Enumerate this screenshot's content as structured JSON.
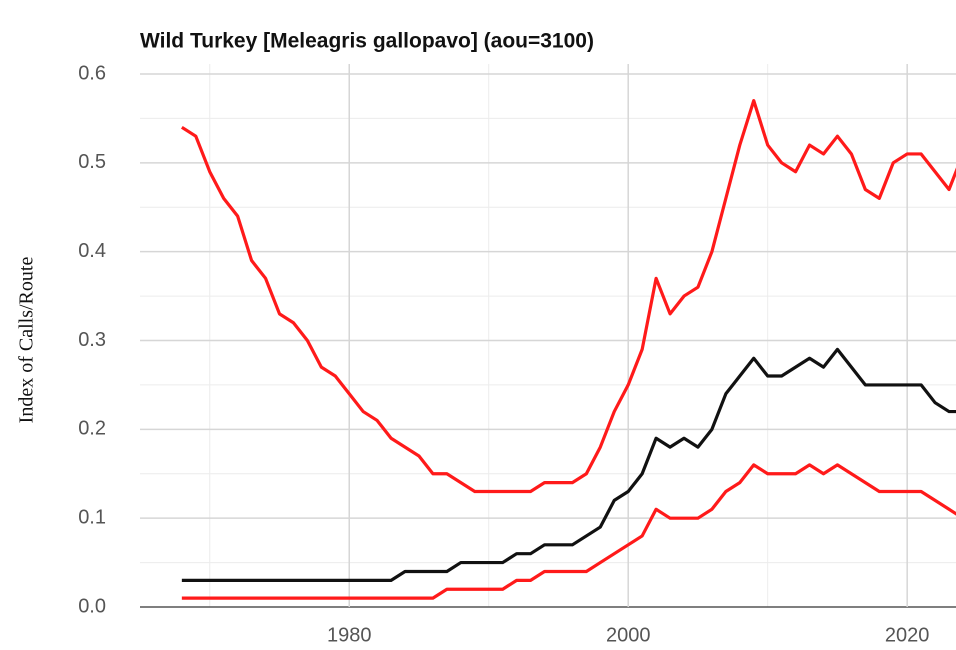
{
  "chart_data": {
    "type": "line",
    "title": "Wild Turkey [Meleagris gallopavo] (aou=3100)",
    "y_label": "Index of Calls/Route",
    "x": [
      1968,
      1969,
      1970,
      1971,
      1972,
      1973,
      1974,
      1975,
      1976,
      1977,
      1978,
      1979,
      1980,
      1981,
      1982,
      1983,
      1984,
      1985,
      1986,
      1987,
      1988,
      1989,
      1990,
      1991,
      1992,
      1993,
      1994,
      1995,
      1996,
      1997,
      1998,
      1999,
      2000,
      2001,
      2002,
      2003,
      2004,
      2005,
      2006,
      2007,
      2008,
      2009,
      2010,
      2011,
      2012,
      2013,
      2014,
      2015,
      2016,
      2017,
      2018,
      2019,
      2020,
      2021,
      2022,
      2023,
      2024
    ],
    "series": [
      {
        "color": "#ff1a1a",
        "values": [
          0.54,
          0.53,
          0.49,
          0.46,
          0.44,
          0.39,
          0.37,
          0.33,
          0.32,
          0.3,
          0.27,
          0.26,
          0.24,
          0.22,
          0.21,
          0.19,
          0.18,
          0.17,
          0.15,
          0.15,
          0.14,
          0.13,
          0.13,
          0.13,
          0.13,
          0.13,
          0.14,
          0.14,
          0.14,
          0.15,
          0.18,
          0.22,
          0.25,
          0.29,
          0.37,
          0.33,
          0.35,
          0.36,
          0.4,
          0.46,
          0.52,
          0.57,
          0.52,
          0.5,
          0.49,
          0.52,
          0.51,
          0.53,
          0.51,
          0.47,
          0.46,
          0.5,
          0.51,
          0.51,
          0.49,
          0.47,
          0.51
        ]
      },
      {
        "color": "#111111",
        "values": [
          0.03,
          0.03,
          0.03,
          0.03,
          0.03,
          0.03,
          0.03,
          0.03,
          0.03,
          0.03,
          0.03,
          0.03,
          0.03,
          0.03,
          0.03,
          0.03,
          0.04,
          0.04,
          0.04,
          0.04,
          0.05,
          0.05,
          0.05,
          0.05,
          0.06,
          0.06,
          0.07,
          0.07,
          0.07,
          0.08,
          0.09,
          0.12,
          0.13,
          0.15,
          0.19,
          0.18,
          0.19,
          0.18,
          0.2,
          0.24,
          0.26,
          0.28,
          0.26,
          0.26,
          0.27,
          0.28,
          0.27,
          0.29,
          0.27,
          0.25,
          0.25,
          0.25,
          0.25,
          0.25,
          0.23,
          0.22,
          0.22
        ]
      },
      {
        "color": "#ff1a1a",
        "values": [
          0.01,
          0.01,
          0.01,
          0.01,
          0.01,
          0.01,
          0.01,
          0.01,
          0.01,
          0.01,
          0.01,
          0.01,
          0.01,
          0.01,
          0.01,
          0.01,
          0.01,
          0.01,
          0.01,
          0.02,
          0.02,
          0.02,
          0.02,
          0.02,
          0.03,
          0.03,
          0.04,
          0.04,
          0.04,
          0.04,
          0.05,
          0.06,
          0.07,
          0.08,
          0.11,
          0.1,
          0.1,
          0.1,
          0.11,
          0.13,
          0.14,
          0.16,
          0.15,
          0.15,
          0.15,
          0.16,
          0.15,
          0.16,
          0.15,
          0.14,
          0.13,
          0.13,
          0.13,
          0.13,
          0.12,
          0.11,
          0.1
        ]
      }
    ],
    "xlim": [
      1965,
      2023.5
    ],
    "ylim": [
      0,
      0.6
    ],
    "xticks": [
      1980,
      2000,
      2020
    ],
    "xticks_minor": [
      1970,
      1990,
      2010
    ],
    "yticks": [
      {
        "value": 0,
        "label": "0.0"
      },
      0.1,
      0.2,
      0.3,
      0.4,
      0.5,
      0.6
    ],
    "yticks_minor": [
      0.05,
      0.15,
      0.25,
      0.35,
      0.45,
      0.55
    ],
    "grid": true
  }
}
